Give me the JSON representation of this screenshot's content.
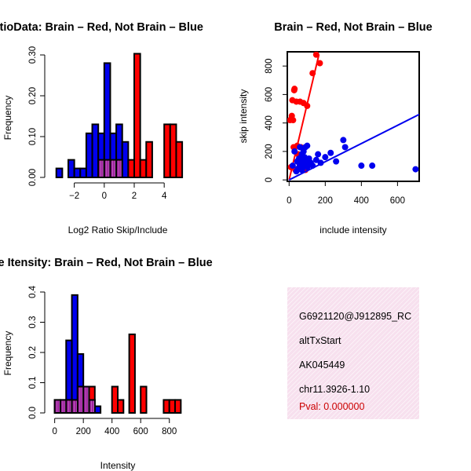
{
  "colors": {
    "red": "#ff0000",
    "blue": "#0000ee",
    "overlap": "#a020a0",
    "panel_bg": "#f7e0ee",
    "pval": "#cc0000"
  },
  "chart_data": [
    {
      "type": "bar",
      "title": "RatioData: Brain – Red, Not Brain – Blue",
      "xlabel": "Log2 Ratio Skip/Include",
      "ylabel": "Frequency",
      "xlim": [
        -3.5,
        5.3
      ],
      "ylim": [
        0,
        0.3
      ],
      "xticks": [
        -2,
        0,
        2,
        4
      ],
      "xtick_labels": [
        "−2",
        "0",
        "2",
        "4"
      ],
      "yticks": [
        0.0,
        0.1,
        0.2,
        0.3
      ],
      "ytick_labels": [
        "0.00",
        "0.10",
        "0.20",
        "0.30"
      ],
      "bin_width": 0.4,
      "series": [
        {
          "name": "Not Brain",
          "color": "blue",
          "bin_starts": [
            -3.2,
            -2.8,
            -2.4,
            -2.0,
            -1.6,
            -1.2,
            -0.8,
            -0.4,
            0.0,
            0.4,
            0.8,
            1.2
          ],
          "values": [
            0.022,
            0.0,
            0.043,
            0.022,
            0.022,
            0.108,
            0.13,
            0.108,
            0.28,
            0.108,
            0.13,
            0.087
          ]
        },
        {
          "name": "Brain",
          "color": "red",
          "bin_starts": [
            -0.4,
            0.0,
            0.4,
            0.8,
            1.6,
            2.0,
            2.4,
            2.8,
            3.2,
            4.0,
            4.4,
            4.8
          ],
          "values": [
            0.043,
            0.043,
            0.043,
            0.043,
            0.043,
            0.303,
            0.043,
            0.087,
            0.0,
            0.13,
            0.13,
            0.087
          ]
        }
      ]
    },
    {
      "type": "scatter",
      "title": "Brain – Red, Not Brain – Blue",
      "xlabel": "include intensity",
      "ylabel": "skip intensity",
      "xlim": [
        -10,
        720
      ],
      "ylim": [
        -10,
        900
      ],
      "xticks": [
        0,
        200,
        400,
        600
      ],
      "yticks": [
        0,
        200,
        400,
        600,
        800
      ],
      "series": [
        {
          "name": "Brain",
          "color": "red",
          "x": [
            5,
            10,
            15,
            18,
            22,
            25,
            28,
            30,
            35,
            40,
            45,
            50,
            55,
            60,
            65,
            70,
            75,
            80,
            90,
            100,
            130,
            150,
            170
          ],
          "y": [
            420,
            90,
            450,
            560,
            420,
            230,
            630,
            640,
            70,
            550,
            240,
            180,
            120,
            550,
            230,
            120,
            90,
            540,
            70,
            520,
            750,
            880,
            820
          ],
          "fit": {
            "x": [
              0,
              165
            ],
            "y": [
              0,
              880
            ]
          }
        },
        {
          "name": "Not Brain",
          "color": "blue",
          "x": [
            20,
            30,
            40,
            45,
            50,
            55,
            60,
            60,
            65,
            70,
            70,
            75,
            80,
            80,
            85,
            90,
            90,
            95,
            100,
            100,
            110,
            120,
            130,
            150,
            160,
            175,
            200,
            230,
            260,
            300,
            310,
            400,
            460,
            700
          ],
          "y": [
            100,
            200,
            60,
            130,
            80,
            150,
            100,
            230,
            120,
            70,
            180,
            140,
            90,
            200,
            160,
            110,
            230,
            130,
            90,
            240,
            150,
            120,
            100,
            140,
            180,
            120,
            160,
            190,
            130,
            280,
            230,
            100,
            100,
            75
          ],
          "fit": {
            "x": [
              0,
              720
            ],
            "y": [
              0,
              460
            ]
          }
        }
      ]
    },
    {
      "type": "bar",
      "title": "Gene Itensity: Brain – Red, Not Brain – Blue",
      "xlabel": "Intensity",
      "ylabel": "Frequency",
      "xlim": [
        -20,
        900
      ],
      "ylim": [
        0,
        0.4
      ],
      "xticks": [
        0,
        200,
        400,
        600,
        800
      ],
      "yticks": [
        0.0,
        0.1,
        0.2,
        0.3,
        0.4
      ],
      "ytick_labels": [
        "0.0",
        "0.1",
        "0.2",
        "0.3",
        "0.4"
      ],
      "bin_width": 40,
      "series": [
        {
          "name": "Not Brain",
          "color": "blue",
          "bin_starts": [
            0,
            40,
            80,
            120,
            160,
            200,
            240,
            280
          ],
          "values": [
            0.043,
            0.043,
            0.24,
            0.39,
            0.195,
            0.087,
            0.043,
            0.022
          ]
        },
        {
          "name": "Brain",
          "color": "red",
          "bin_starts": [
            0,
            40,
            80,
            120,
            160,
            200,
            240,
            400,
            440,
            520,
            600,
            760,
            800,
            840
          ],
          "values": [
            0.043,
            0.043,
            0.043,
            0.043,
            0.087,
            0.087,
            0.087,
            0.087,
            0.043,
            0.26,
            0.087,
            0.043,
            0.043,
            0.043
          ]
        }
      ]
    }
  ],
  "info": {
    "lines": [
      "G6921120@J912895_RC",
      "altTxStart",
      "AK045449",
      "chr11.3926-1.10"
    ],
    "pval": "Pval: 0.000000"
  }
}
